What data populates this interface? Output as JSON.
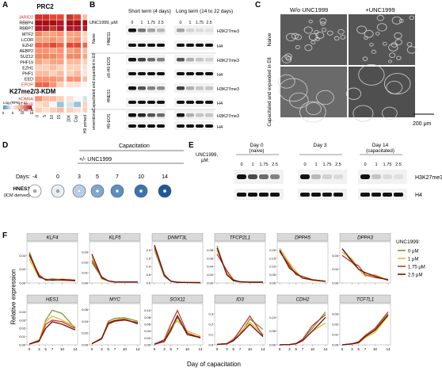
{
  "panel_letters": {
    "a": "A",
    "b": "B",
    "c": "C",
    "d": "D",
    "e": "E",
    "f": "F"
  },
  "panelA": {
    "title_prc2": "PRC2",
    "title_kdm": "K27me2/3-KDM",
    "prc2_genes": [
      "JARID2",
      "RBBP4",
      "RBBP7",
      "MTF2",
      "LCOR",
      "EZH2",
      "AEBP2",
      "SUZ12",
      "PHF19",
      "EZH1",
      "PHF1",
      "EED",
      "EPOP"
    ],
    "prc2_highlight": [
      "JARID2",
      "EPOP"
    ],
    "kdm_genes": [
      "KDM6A",
      "KDM6B",
      "KDM7A"
    ],
    "kdm_highlight": [
      "KDM6A",
      "KDM6B"
    ],
    "columns": [
      "0",
      "5",
      "10",
      "15",
      "20X",
      "Cap",
      "H9 primed"
    ],
    "legend_title": "Log₂(RPM + 1)",
    "legend_ticks": [
      "0",
      "5",
      "10",
      "15"
    ],
    "colors": {
      "low": "#f7f7f7",
      "mid": "#f4a582",
      "high": "#b2182b",
      "blue": "#4393c3",
      "highlight": "#c0392b"
    }
  },
  "panelB": {
    "short_term": "Short term (4 days)",
    "long_term": "Long term (14 to 22 days)",
    "unc_label": "UNC1999, μM:",
    "doses": [
      "0",
      "1",
      "1.75",
      "2.5"
    ],
    "row_groups": [
      "Naive",
      "Capacitated and expanded in E8",
      "Conventional"
    ],
    "lanes": [
      "HNES1",
      "cR-H9 EOS",
      "HNES1",
      "H9-EOS"
    ],
    "bands": [
      "H3K27me3",
      "H4",
      "H3K27me3",
      "H4",
      "H3K27me3",
      "H4",
      "H3K27me3",
      "H4"
    ]
  },
  "panelC": {
    "col_without": "W/o UNC1999",
    "col_with": "+UNC1999",
    "row_naive": "Naive",
    "row_cap": "Capacitated and expanded in E8",
    "scale": "200 μm"
  },
  "panelD": {
    "capacitation": "Capacitation",
    "unc": "+/- UNC1999",
    "days_label": "Days:",
    "days": [
      "-4",
      "0",
      "3",
      "5",
      "7",
      "10",
      "14"
    ],
    "line_label": "HNES1",
    "line_sub": "(ICM derived)"
  },
  "panelE": {
    "unc_label": "UNC1999, μM:",
    "groups": [
      {
        "title": "Day 0",
        "sub": "(naive)"
      },
      {
        "title": "Day 3",
        "sub": ""
      },
      {
        "title": "Day 14",
        "sub": "(capacitated)"
      }
    ],
    "doses": [
      "0",
      "1",
      "1.75",
      "2.5"
    ],
    "bands": [
      "H3K27me3",
      "H4"
    ]
  },
  "panelF": {
    "ylabel": "Relative expression",
    "xlabel": "Day of capacitation",
    "legend_title": "UNC1999:",
    "legend": [
      {
        "label": "0 μM",
        "color": "#7a9a3a"
      },
      {
        "label": "1 μM",
        "color": "#e8b42a"
      },
      {
        "label": "1.75 μM",
        "color": "#c0392b"
      },
      {
        "label": "2.5 μM",
        "color": "#6b1010"
      }
    ],
    "xticks": [
      "0",
      "3",
      "5",
      "7",
      "10",
      "14"
    ]
  },
  "chart_data": [
    {
      "type": "line",
      "title": "KLF4",
      "x": [
        0,
        3,
        5,
        7,
        10,
        14
      ],
      "ylim": [
        0,
        0.06
      ],
      "yticks": [
        "0.00",
        "0.02",
        "0.04"
      ],
      "series": [
        {
          "name": "0 μM",
          "values": [
            0.045,
            0.01,
            0.005,
            0.006,
            0.005,
            0.004
          ]
        },
        {
          "name": "1 μM",
          "values": [
            0.035,
            0.008,
            0.006,
            0.004,
            0.006,
            0.004
          ]
        },
        {
          "name": "1.75 μM",
          "values": [
            0.04,
            0.012,
            0.004,
            0.005,
            0.004,
            0.003
          ]
        },
        {
          "name": "2.5 μM",
          "values": [
            0.042,
            0.009,
            0.005,
            0.004,
            0.005,
            0.004
          ]
        }
      ]
    },
    {
      "type": "line",
      "title": "KLF5",
      "x": [
        0,
        3,
        5,
        7,
        10,
        14
      ],
      "ylim": [
        0,
        0.04
      ],
      "yticks": [
        "0.00",
        "0.01",
        "0.02",
        "0.03"
      ],
      "series": [
        {
          "name": "0 μM",
          "values": [
            0.02,
            0.005,
            0.002,
            0.001,
            0.001,
            0.001
          ]
        },
        {
          "name": "1 μM",
          "values": [
            0.025,
            0.004,
            0.002,
            0.001,
            0.001,
            0.001
          ]
        },
        {
          "name": "1.75 μM",
          "values": [
            0.022,
            0.006,
            0.002,
            0.001,
            0.001,
            0.001
          ]
        },
        {
          "name": "2.5 μM",
          "values": [
            0.028,
            0.005,
            0.002,
            0.001,
            0.001,
            0.001
          ]
        }
      ]
    },
    {
      "type": "line",
      "title": "DNMT3L",
      "x": [
        0,
        3,
        5,
        7,
        10,
        14
      ],
      "ylim": [
        0,
        2.5
      ],
      "yticks": [
        "0.0",
        "0.5",
        "1.0",
        "1.5",
        "2.0"
      ],
      "series": [
        {
          "name": "0 μM",
          "values": [
            2.0,
            0.4,
            0.1,
            0.05,
            0.03,
            0.02
          ]
        },
        {
          "name": "1 μM",
          "values": [
            2.1,
            0.5,
            0.1,
            0.05,
            0.03,
            0.02
          ]
        },
        {
          "name": "1.75 μM",
          "values": [
            2.2,
            0.45,
            0.12,
            0.05,
            0.03,
            0.02
          ]
        },
        {
          "name": "2.5 μM",
          "values": [
            2.3,
            0.5,
            0.1,
            0.04,
            0.03,
            0.02
          ]
        }
      ]
    },
    {
      "type": "line",
      "title": "TFCP2L1",
      "x": [
        0,
        3,
        5,
        7,
        10,
        14
      ],
      "ylim": [
        0,
        0.1
      ],
      "yticks": [
        "0.00",
        "0.02",
        "0.04",
        "0.06",
        "0.08"
      ],
      "series": [
        {
          "name": "0 μM",
          "values": [
            0.09,
            0.02,
            0.005,
            0.003,
            0.002,
            0.002
          ]
        },
        {
          "name": "1 μM",
          "values": [
            0.08,
            0.025,
            0.006,
            0.003,
            0.002,
            0.002
          ]
        },
        {
          "name": "1.75 μM",
          "values": [
            0.07,
            0.03,
            0.008,
            0.003,
            0.002,
            0.002
          ]
        },
        {
          "name": "2.5 μM",
          "values": [
            0.085,
            0.02,
            0.006,
            0.003,
            0.002,
            0.002
          ]
        }
      ]
    },
    {
      "type": "line",
      "title": "DPPA5",
      "x": [
        0,
        3,
        5,
        7,
        10,
        14
      ],
      "ylim": [
        0,
        0.25
      ],
      "yticks": [
        "0.00",
        "0.05",
        "0.10",
        "0.15",
        "0.20"
      ],
      "series": [
        {
          "name": "0 μM",
          "values": [
            0.2,
            0.1,
            0.06,
            0.03,
            0.02,
            0.01
          ]
        },
        {
          "name": "1 μM",
          "values": [
            0.21,
            0.12,
            0.07,
            0.03,
            0.015,
            0.01
          ]
        },
        {
          "name": "1.75 μM",
          "values": [
            0.19,
            0.11,
            0.05,
            0.04,
            0.02,
            0.01
          ]
        },
        {
          "name": "2.5 μM",
          "values": [
            0.2,
            0.09,
            0.06,
            0.03,
            0.02,
            0.01
          ]
        }
      ]
    },
    {
      "type": "line",
      "title": "DPPA3",
      "x": [
        0,
        3,
        5,
        7,
        10,
        14
      ],
      "ylim": [
        0,
        0.06
      ],
      "yticks": [
        "0.00",
        "0.02",
        "0.04"
      ],
      "series": [
        {
          "name": "0 μM",
          "values": [
            0.05,
            0.03,
            0.02,
            0.015,
            0.01,
            0.005
          ]
        },
        {
          "name": "1 μM",
          "values": [
            0.045,
            0.035,
            0.02,
            0.01,
            0.012,
            0.004
          ]
        },
        {
          "name": "1.75 μM",
          "values": [
            0.04,
            0.03,
            0.025,
            0.012,
            0.008,
            0.005
          ]
        },
        {
          "name": "2.5 μM",
          "values": [
            0.05,
            0.032,
            0.02,
            0.015,
            0.01,
            0.004
          ]
        }
      ]
    },
    {
      "type": "line",
      "title": "HES1",
      "x": [
        0,
        3,
        5,
        7,
        10,
        14
      ],
      "ylim": [
        0,
        0.05
      ],
      "yticks": [
        "0.00",
        "0.01",
        "0.02",
        "0.03",
        "0.04"
      ],
      "series": [
        {
          "name": "0 μM",
          "values": [
            0.001,
            0.005,
            0.03,
            0.042,
            0.038,
            0.02
          ]
        },
        {
          "name": "1 μM",
          "values": [
            0.001,
            0.006,
            0.028,
            0.035,
            0.03,
            0.022
          ]
        },
        {
          "name": "1.75 μM",
          "values": [
            0.001,
            0.004,
            0.025,
            0.03,
            0.028,
            0.02
          ]
        },
        {
          "name": "2.5 μM",
          "values": [
            0.001,
            0.005,
            0.02,
            0.028,
            0.025,
            0.018
          ]
        }
      ]
    },
    {
      "type": "line",
      "title": "MYC",
      "x": [
        0,
        3,
        5,
        7,
        10,
        14
      ],
      "ylim": [
        0,
        0.07
      ],
      "yticks": [
        "0.00",
        "0.02",
        "0.04",
        "0.06"
      ],
      "series": [
        {
          "name": "0 μM",
          "values": [
            0.002,
            0.01,
            0.04,
            0.045,
            0.046,
            0.04
          ]
        },
        {
          "name": "1 μM",
          "values": [
            0.002,
            0.012,
            0.038,
            0.042,
            0.045,
            0.035
          ]
        },
        {
          "name": "1.75 μM",
          "values": [
            0.002,
            0.01,
            0.035,
            0.04,
            0.042,
            0.038
          ]
        },
        {
          "name": "2.5 μM",
          "values": [
            0.002,
            0.011,
            0.037,
            0.041,
            0.043,
            0.036
          ]
        }
      ]
    },
    {
      "type": "line",
      "title": "SOX11",
      "x": [
        0,
        3,
        5,
        7,
        10,
        14
      ],
      "ylim": [
        0,
        0.12
      ],
      "yticks": [
        "0.00",
        "0.02",
        "0.04",
        "0.06",
        "0.08",
        "0.10"
      ],
      "series": [
        {
          "name": "0 μM",
          "values": [
            0.002,
            0.01,
            0.04,
            0.08,
            0.03,
            0.02
          ]
        },
        {
          "name": "1 μM",
          "values": [
            0.002,
            0.012,
            0.05,
            0.07,
            0.04,
            0.025
          ]
        },
        {
          "name": "1.75 μM",
          "values": [
            0.002,
            0.015,
            0.06,
            0.1,
            0.035,
            0.02
          ]
        },
        {
          "name": "2.5 μM",
          "values": [
            0.002,
            0.01,
            0.045,
            0.085,
            0.03,
            0.022
          ]
        }
      ]
    },
    {
      "type": "line",
      "title": "ID3",
      "x": [
        0,
        3,
        5,
        7,
        10,
        14
      ],
      "ylim": [
        0,
        0.4
      ],
      "yticks": [
        "0.0",
        "0.1",
        "0.2",
        "0.3"
      ],
      "series": [
        {
          "name": "0 μM",
          "values": [
            0.005,
            0.01,
            0.05,
            0.1,
            0.25,
            0.15
          ]
        },
        {
          "name": "1 μM",
          "values": [
            0.005,
            0.01,
            0.06,
            0.12,
            0.22,
            0.1
          ]
        },
        {
          "name": "1.75 μM",
          "values": [
            0.005,
            0.012,
            0.05,
            0.14,
            0.28,
            0.09
          ]
        },
        {
          "name": "2.5 μM",
          "values": [
            0.005,
            0.01,
            0.04,
            0.1,
            0.2,
            0.08
          ]
        }
      ]
    },
    {
      "type": "line",
      "title": "CDH2",
      "x": [
        0,
        3,
        5,
        7,
        10,
        14
      ],
      "ylim": [
        0,
        0.15
      ],
      "yticks": [
        "0.00",
        "0.05",
        "0.10"
      ],
      "series": [
        {
          "name": "0 μM",
          "values": [
            0.0,
            0.001,
            0.005,
            0.02,
            0.06,
            0.12
          ]
        },
        {
          "name": "1 μM",
          "values": [
            0.0,
            0.001,
            0.004,
            0.015,
            0.05,
            0.08
          ]
        },
        {
          "name": "1.75 μM",
          "values": [
            0.0,
            0.001,
            0.005,
            0.02,
            0.07,
            0.11
          ]
        },
        {
          "name": "2.5 μM",
          "values": [
            0.0,
            0.001,
            0.004,
            0.015,
            0.05,
            0.1
          ]
        }
      ]
    },
    {
      "type": "line",
      "title": "TCF7L1",
      "x": [
        0,
        3,
        5,
        7,
        10,
        14
      ],
      "ylim": [
        0,
        0.04
      ],
      "yticks": [
        "0.00",
        "0.01",
        "0.02",
        "0.03"
      ],
      "series": [
        {
          "name": "0 μM",
          "values": [
            0.0,
            0.001,
            0.003,
            0.008,
            0.015,
            0.03
          ]
        },
        {
          "name": "1 μM",
          "values": [
            0.0,
            0.001,
            0.002,
            0.007,
            0.012,
            0.028
          ]
        },
        {
          "name": "1.75 μM",
          "values": [
            0.0,
            0.001,
            0.003,
            0.009,
            0.016,
            0.032
          ]
        },
        {
          "name": "2.5 μM",
          "values": [
            0.0,
            0.001,
            0.002,
            0.008,
            0.014,
            0.029
          ]
        }
      ]
    }
  ]
}
